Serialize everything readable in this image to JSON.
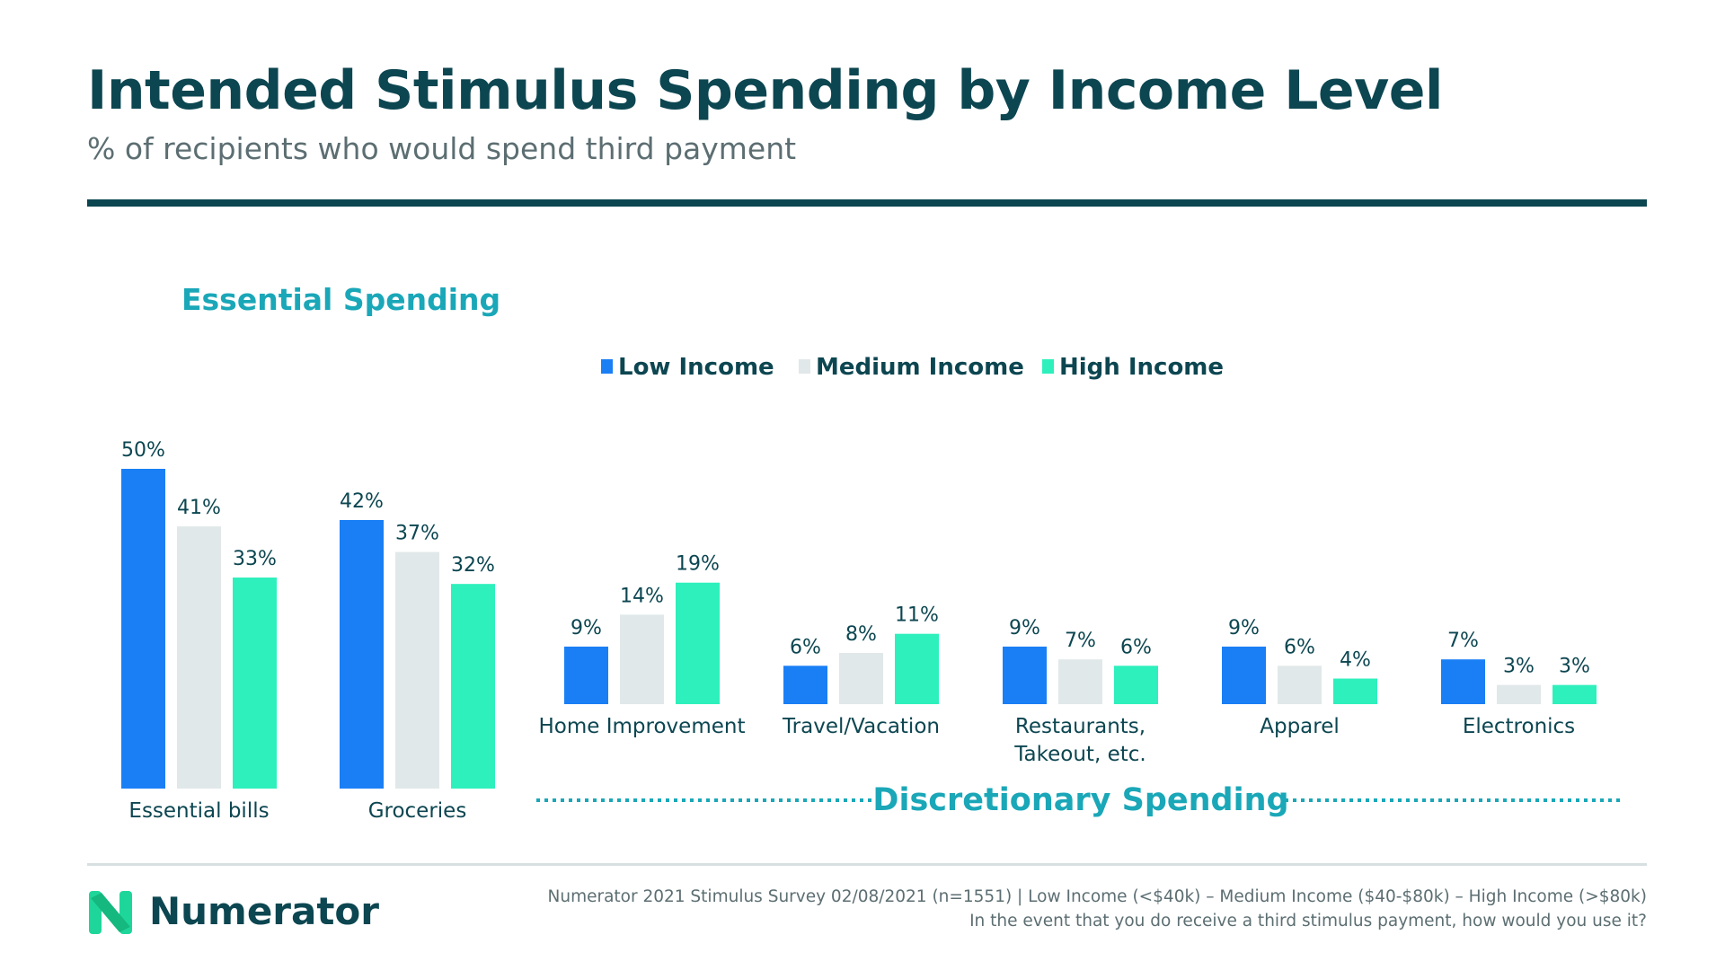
{
  "header": {
    "title": "Intended Stimulus Spending by Income Level",
    "subtitle": "% of recipients who would spend third payment"
  },
  "chart_data": {
    "type": "bar",
    "groups": [
      {
        "name": "Essential Spending",
        "categories": [
          "Essential bills",
          "Groceries"
        ]
      },
      {
        "name": "Discretionary Spending",
        "categories": [
          "Home Improvement",
          "Travel/Vacation",
          "Restaurants, Takeout, etc.",
          "Apparel",
          "Electronics"
        ]
      }
    ],
    "categories": [
      "Essential bills",
      "Groceries",
      "Home Improvement",
      "Travel/Vacation",
      "Restaurants, Takeout, etc.",
      "Apparel",
      "Electronics"
    ],
    "series": [
      {
        "name": "Low Income",
        "color": "#1a7ff5",
        "values": [
          50,
          42,
          9,
          6,
          9,
          9,
          7
        ]
      },
      {
        "name": "Medium Income",
        "color": "#e1e8e9",
        "values": [
          41,
          37,
          14,
          8,
          7,
          6,
          3
        ]
      },
      {
        "name": "High Income",
        "color": "#2ef0bc",
        "values": [
          33,
          32,
          19,
          11,
          6,
          4,
          3
        ]
      }
    ],
    "value_suffix": "%",
    "legend_position": "top",
    "grid": false
  },
  "footer": {
    "brand": "Numerator",
    "source_line1": "Numerator 2021 Stimulus Survey 02/08/2021 (n=1551) | Low Income (<$40k) – Medium Income ($40-$80k) – High Income (>$80k)",
    "source_line2": "In the event that you do receive a third stimulus payment, how would you use it?"
  },
  "colors": {
    "title": "#0c4651",
    "accent": "#1aa7b8",
    "text": "#0c4651"
  }
}
